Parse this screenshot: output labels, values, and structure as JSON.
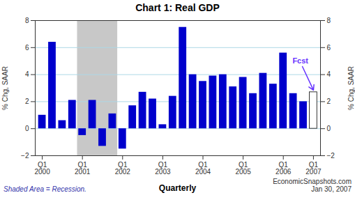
{
  "chart_data": {
    "type": "bar",
    "title": "Chart 1: Real GDP",
    "ylabel": "% Chg, SAAR",
    "categories": [
      "Q1\n2000",
      null,
      null,
      null,
      "Q1\n2001",
      null,
      null,
      null,
      "Q1\n2002",
      null,
      null,
      null,
      "Q1\n2003",
      null,
      null,
      null,
      "Q1\n2004",
      null,
      null,
      null,
      "Q1\n2005",
      null,
      null,
      null,
      "Q1\n2006",
      null,
      null,
      "Q1\n2007"
    ],
    "values": [
      1.0,
      6.4,
      0.6,
      2.1,
      -0.5,
      2.1,
      -1.3,
      1.1,
      -1.5,
      1.7,
      2.7,
      2.2,
      0.3,
      2.4,
      7.5,
      4.0,
      3.5,
      3.9,
      4.0,
      3.1,
      3.8,
      2.6,
      4.1,
      3.3,
      5.6,
      2.6,
      2.0,
      2.7
    ],
    "colors": [
      "#0000CC",
      "#0000CC",
      "#0000CC",
      "#0000CC",
      "#0000CC",
      "#0000CC",
      "#0000CC",
      "#0000CC",
      "#0000CC",
      "#0000CC",
      "#0000CC",
      "#0000CC",
      "#0000CC",
      "#0000CC",
      "#0000CC",
      "#0000CC",
      "#0000CC",
      "#0000CC",
      "#0000CC",
      "#0000CC",
      "#0000CC",
      "#0000CC",
      "#0000CC",
      "#0000CC",
      "#0000CC",
      "#0000CC",
      "#0000CC",
      "#FFFFFF"
    ],
    "ylim": [
      -2,
      8
    ],
    "yticks": [
      -2,
      0,
      2,
      4,
      6,
      8
    ],
    "grid": true,
    "shaded": {
      "start": 4,
      "end": 8,
      "color": "#C8C8C8"
    },
    "annotations": [
      {
        "text": "Fcst",
        "color": "#6633FF"
      }
    ],
    "notes": [
      "Shaded Area = Recession.",
      "Quarterly",
      "EconomicSnapshots.com\nJan 30, 2007"
    ]
  }
}
